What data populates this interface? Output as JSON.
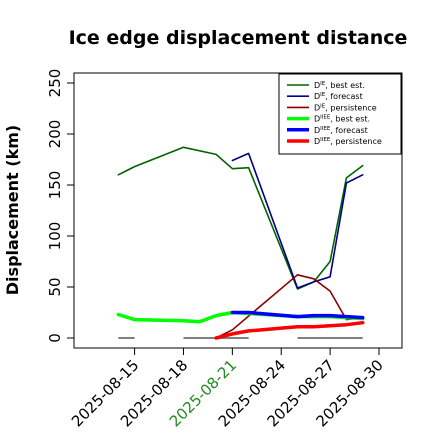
{
  "chart_data": {
    "type": "line",
    "title": "Ice edge displacement distance",
    "ylabel": "Displacement (km)",
    "xlabel": "",
    "ylim": [
      0,
      260
    ],
    "xlim": [
      "2025-08-13",
      "2025-08-30"
    ],
    "grid": false,
    "legend_position": "top-right",
    "y_ticks": [
      0,
      50,
      100,
      150,
      200,
      250
    ],
    "x_ticks": [
      {
        "date": "2025-08-15",
        "label": "2025-08-15",
        "color": "#000000"
      },
      {
        "date": "2025-08-18",
        "label": "2025-08-18",
        "color": "#000000"
      },
      {
        "date": "2025-08-21",
        "label": "2025-08-21",
        "color": "#228B22"
      },
      {
        "date": "2025-08-24",
        "label": "2025-08-24",
        "color": "#000000"
      },
      {
        "date": "2025-08-27",
        "label": "2025-08-27",
        "color": "#000000"
      },
      {
        "date": "2025-08-30",
        "label": "2025-08-30",
        "color": "#000000"
      }
    ],
    "series": [
      {
        "name": "D^IE, best est.",
        "name_main": "D",
        "name_sup": "IE",
        "name_rest": ", best est.",
        "color": "#006400",
        "width": 1.6,
        "points": [
          [
            "2025-08-14",
            160
          ],
          [
            "2025-08-15",
            168
          ],
          [
            "2025-08-18",
            187
          ],
          [
            "2025-08-20",
            180
          ],
          [
            "2025-08-21",
            166
          ],
          [
            "2025-08-22",
            167
          ],
          [
            "2025-08-25",
            48
          ],
          [
            "2025-08-26",
            55
          ],
          [
            "2025-08-27",
            75
          ],
          [
            "2025-08-28",
            157
          ],
          [
            "2025-08-29",
            169
          ]
        ]
      },
      {
        "name": "D^IE, forecast",
        "name_main": "D",
        "name_sup": "IE",
        "name_rest": ", forecast",
        "color": "#00008B",
        "width": 1.6,
        "points": [
          [
            "2025-08-21",
            174
          ],
          [
            "2025-08-22",
            181
          ],
          [
            "2025-08-25",
            49
          ],
          [
            "2025-08-26",
            55
          ],
          [
            "2025-08-27",
            60
          ],
          [
            "2025-08-28",
            152
          ],
          [
            "2025-08-29",
            160
          ]
        ]
      },
      {
        "name": "D^IE, persistence",
        "name_main": "D",
        "name_sup": "IE",
        "name_rest": ", persistence",
        "color": "#8B0000",
        "width": 1.6,
        "points": [
          [
            "2025-08-20",
            0
          ],
          [
            "2025-08-21",
            8
          ],
          [
            "2025-08-25",
            62
          ],
          [
            "2025-08-26",
            58
          ],
          [
            "2025-08-27",
            46
          ],
          [
            "2025-08-28",
            18
          ],
          [
            "2025-08-29",
            20
          ]
        ]
      },
      {
        "name": "D^IIEE, best est.",
        "name_main": "D",
        "name_sup": "IIEE",
        "name_rest": ", best est.",
        "color": "#00FF00",
        "width": 3.5,
        "points": [
          [
            "2025-08-14",
            23
          ],
          [
            "2025-08-15",
            18
          ],
          [
            "2025-08-18",
            17
          ],
          [
            "2025-08-19",
            16
          ],
          [
            "2025-08-20",
            22
          ],
          [
            "2025-08-21",
            25
          ],
          [
            "2025-08-22",
            24
          ],
          [
            "2025-08-25",
            21
          ],
          [
            "2025-08-26",
            21
          ],
          [
            "2025-08-27",
            21
          ],
          [
            "2025-08-28",
            20
          ],
          [
            "2025-08-29",
            19
          ]
        ]
      },
      {
        "name": "D^IIEE, forecast",
        "name_main": "D",
        "name_sup": "IIEE",
        "name_rest": ", forecast",
        "color": "#0000FF",
        "width": 3.5,
        "points": [
          [
            "2025-08-21",
            25
          ],
          [
            "2025-08-22",
            25
          ],
          [
            "2025-08-25",
            21
          ],
          [
            "2025-08-26",
            22
          ],
          [
            "2025-08-27",
            22
          ],
          [
            "2025-08-28",
            21
          ],
          [
            "2025-08-29",
            20
          ]
        ]
      },
      {
        "name": "D^IIEE, persistence",
        "name_main": "D",
        "name_sup": "IIEE",
        "name_rest": ", persistence",
        "color": "#FF0000",
        "width": 3.5,
        "points": [
          [
            "2025-08-20",
            0
          ],
          [
            "2025-08-21",
            4
          ],
          [
            "2025-08-22",
            7
          ],
          [
            "2025-08-25",
            11
          ],
          [
            "2025-08-26",
            11
          ],
          [
            "2025-08-27",
            12
          ],
          [
            "2025-08-28",
            13
          ],
          [
            "2025-08-29",
            15
          ]
        ]
      }
    ],
    "baseline_segments": [
      {
        "from": "2025-08-14",
        "to": "2025-08-15",
        "value": 0,
        "color": "#808080"
      },
      {
        "from": "2025-08-18",
        "to": "2025-08-22",
        "value": 0,
        "color": "#808080"
      },
      {
        "from": "2025-08-25",
        "to": "2025-08-29",
        "value": 0,
        "color": "#808080"
      }
    ]
  }
}
